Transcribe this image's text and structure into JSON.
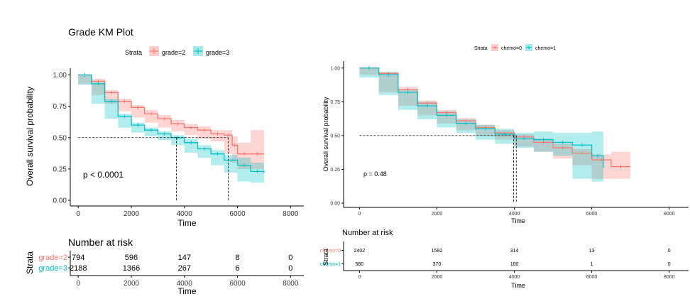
{
  "chart_data": [
    {
      "type": "line",
      "subtype": "kaplan-meier",
      "title": "Grade KM Plot",
      "legend_title": "Strata",
      "legend_position": "top",
      "xlabel": "Time",
      "ylabel": "Overall survival probability",
      "xlim": [
        -300,
        8500
      ],
      "ylim": [
        0,
        1.02
      ],
      "xticks": [
        "0",
        "2000",
        "4000",
        "6000",
        "8000"
      ],
      "yticks": [
        "0.00",
        "0.25",
        "0.50",
        "0.75",
        "1.00"
      ],
      "annotation": "p < 0.0001",
      "median_survival": [
        {
          "strata": "grade=2",
          "time": 5650
        },
        {
          "strata": "grade=3",
          "time": 3700
        }
      ],
      "series": [
        {
          "name": "grade=2",
          "color": "#F8766D",
          "x": [
            0,
            500,
            1000,
            1500,
            2000,
            2500,
            3000,
            3500,
            4000,
            4500,
            5000,
            5500,
            5800,
            6000,
            6500,
            7000
          ],
          "y": [
            1.0,
            0.95,
            0.86,
            0.79,
            0.74,
            0.69,
            0.65,
            0.61,
            0.58,
            0.56,
            0.53,
            0.52,
            0.44,
            0.37,
            0.37,
            0.37
          ],
          "ci_upper": [
            1.0,
            0.97,
            0.88,
            0.81,
            0.76,
            0.72,
            0.68,
            0.64,
            0.61,
            0.59,
            0.56,
            0.56,
            0.51,
            0.46,
            0.56,
            0.56
          ],
          "ci_lower": [
            1.0,
            0.93,
            0.84,
            0.77,
            0.71,
            0.66,
            0.62,
            0.58,
            0.55,
            0.52,
            0.49,
            0.47,
            0.37,
            0.3,
            0.25,
            0.25
          ]
        },
        {
          "name": "grade=3",
          "color": "#00BFC4",
          "x": [
            0,
            500,
            1000,
            1500,
            2000,
            2500,
            3000,
            3500,
            4000,
            4500,
            5000,
            5500,
            6000,
            6500,
            7000
          ],
          "y": [
            1.0,
            0.93,
            0.79,
            0.67,
            0.6,
            0.56,
            0.53,
            0.5,
            0.46,
            0.41,
            0.37,
            0.32,
            0.28,
            0.23,
            0.22
          ],
          "ci_upper": [
            1.0,
            0.94,
            0.81,
            0.69,
            0.62,
            0.58,
            0.55,
            0.52,
            0.49,
            0.44,
            0.4,
            0.36,
            0.34,
            0.3,
            0.28
          ],
          "ci_lower": [
            1.0,
            0.92,
            0.77,
            0.65,
            0.58,
            0.54,
            0.51,
            0.48,
            0.44,
            0.38,
            0.34,
            0.28,
            0.22,
            0.15,
            0.14
          ]
        }
      ],
      "risk_table": {
        "title": "Number at risk",
        "ylabel": "Strata",
        "xlabel": "Time",
        "times": [
          0,
          2000,
          4000,
          6000,
          8000
        ],
        "rows": [
          {
            "strata": "grade=2",
            "color": "#F8766D",
            "values": [
              "794",
              "596",
              "147",
              "8",
              "0"
            ]
          },
          {
            "strata": "grade=3",
            "color": "#00BFC4",
            "values": [
              "2188",
              "1366",
              "267",
              "6",
              "0"
            ]
          }
        ]
      }
    },
    {
      "type": "line",
      "subtype": "kaplan-meier",
      "title": "",
      "legend_title": "Strata",
      "legend_position": "top",
      "xlabel": "Time",
      "ylabel": "Overall survival probability",
      "xlim": [
        -300,
        8500
      ],
      "ylim": [
        0,
        1.02
      ],
      "xticks": [
        "0",
        "2000",
        "4000",
        "6000",
        "8000"
      ],
      "yticks": [
        "0.00",
        "0.25",
        "0.50",
        "0.75",
        "1.00"
      ],
      "annotation": "p = 0.48",
      "median_survival": [
        {
          "strata": "chemo=0",
          "time": 4050
        },
        {
          "strata": "chemo=1",
          "time": 3980
        }
      ],
      "series": [
        {
          "name": "chemo=0",
          "color": "#F8766D",
          "x": [
            0,
            500,
            1000,
            1500,
            2000,
            2500,
            3000,
            3500,
            4000,
            4500,
            5000,
            5500,
            6000,
            6500,
            7000
          ],
          "y": [
            1.0,
            0.96,
            0.84,
            0.74,
            0.67,
            0.61,
            0.56,
            0.52,
            0.49,
            0.45,
            0.41,
            0.37,
            0.32,
            0.27,
            0.27
          ],
          "ci_upper": [
            1.0,
            0.97,
            0.86,
            0.76,
            0.69,
            0.63,
            0.58,
            0.54,
            0.51,
            0.48,
            0.44,
            0.4,
            0.36,
            0.38,
            0.38
          ],
          "ci_lower": [
            1.0,
            0.95,
            0.82,
            0.72,
            0.65,
            0.59,
            0.54,
            0.5,
            0.47,
            0.42,
            0.38,
            0.33,
            0.28,
            0.18,
            0.18
          ]
        },
        {
          "name": "chemo=1",
          "color": "#00BFC4",
          "x": [
            0,
            500,
            1000,
            1500,
            2000,
            2500,
            3000,
            3500,
            4000,
            4500,
            5000,
            5500,
            6000,
            6300
          ],
          "y": [
            1.0,
            0.95,
            0.82,
            0.72,
            0.65,
            0.59,
            0.55,
            0.51,
            0.48,
            0.47,
            0.45,
            0.43,
            0.35,
            0.26
          ],
          "ci_upper": [
            1.0,
            0.97,
            0.84,
            0.75,
            0.68,
            0.62,
            0.58,
            0.55,
            0.52,
            0.53,
            0.52,
            0.52,
            0.53,
            0.53
          ],
          "ci_lower": [
            1.0,
            0.93,
            0.8,
            0.69,
            0.62,
            0.56,
            0.52,
            0.47,
            0.44,
            0.41,
            0.38,
            0.35,
            0.18,
            0.16
          ]
        }
      ],
      "risk_table": {
        "title": "Number at risk",
        "ylabel": "Strata",
        "xlabel": "Time",
        "times": [
          0,
          2000,
          4000,
          6000,
          8000
        ],
        "rows": [
          {
            "strata": "chemo=0",
            "color": "#F8766D",
            "values": [
              "2402",
              "1592",
              "314",
              "13",
              "0"
            ]
          },
          {
            "strata": "chemo=1",
            "color": "#00BFC4",
            "values": [
              "580",
              "370",
              "100",
              "1",
              "0"
            ]
          }
        ]
      }
    }
  ]
}
